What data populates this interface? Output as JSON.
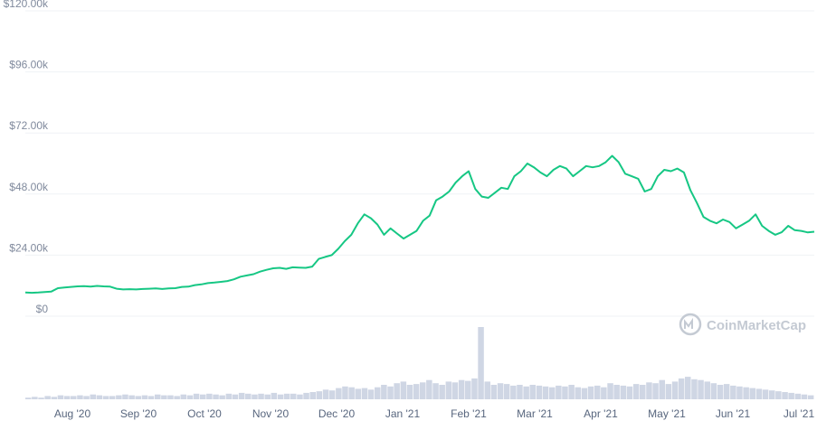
{
  "chart_data": {
    "type": "line",
    "title": "",
    "xlabel": "",
    "ylabel": "",
    "y_ticks": [
      "$120.00k",
      "$96.00k",
      "$72.00k",
      "$48.00k",
      "$24.00k",
      "$0"
    ],
    "ylim": [
      0,
      120000
    ],
    "x_ticks": [
      "Aug '20",
      "Sep '20",
      "Oct '20",
      "Nov '20",
      "Dec '20",
      "Jan '21",
      "Feb '21",
      "Mar '21",
      "Apr '21",
      "May '21",
      "Jun '21",
      "Jul '21"
    ],
    "grid": true,
    "line_color": "#16c784",
    "volume_color": "#cfd6e4",
    "watermark": "CoinMarketCap",
    "series": [
      {
        "values": [
          [
            0,
            9300
          ],
          [
            1,
            9200
          ],
          [
            2,
            9300
          ],
          [
            3,
            9500
          ],
          [
            4,
            9700
          ],
          [
            5,
            11000
          ],
          [
            6,
            11300
          ],
          [
            7,
            11500
          ],
          [
            8,
            11700
          ],
          [
            9,
            11800
          ],
          [
            10,
            11600
          ],
          [
            11,
            11900
          ],
          [
            12,
            11700
          ],
          [
            13,
            11600
          ],
          [
            14,
            10800
          ],
          [
            15,
            10500
          ],
          [
            16,
            10600
          ],
          [
            17,
            10500
          ],
          [
            18,
            10700
          ],
          [
            19,
            10800
          ],
          [
            20,
            10900
          ],
          [
            21,
            10700
          ],
          [
            22,
            10900
          ],
          [
            23,
            11000
          ],
          [
            24,
            11500
          ],
          [
            25,
            11600
          ],
          [
            26,
            12200
          ],
          [
            27,
            12500
          ],
          [
            28,
            13000
          ],
          [
            29,
            13200
          ],
          [
            30,
            13500
          ],
          [
            31,
            13800
          ],
          [
            32,
            14500
          ],
          [
            33,
            15500
          ],
          [
            34,
            16000
          ],
          [
            35,
            16500
          ],
          [
            36,
            17500
          ],
          [
            37,
            18200
          ],
          [
            38,
            18800
          ],
          [
            39,
            19000
          ],
          [
            40,
            18600
          ],
          [
            41,
            19200
          ],
          [
            42,
            19100
          ],
          [
            43,
            19000
          ],
          [
            44,
            19500
          ],
          [
            45,
            22500
          ],
          [
            46,
            23300
          ],
          [
            47,
            24000
          ],
          [
            48,
            26500
          ],
          [
            49,
            29500
          ],
          [
            50,
            32000
          ],
          [
            51,
            36500
          ],
          [
            52,
            40000
          ],
          [
            53,
            38500
          ],
          [
            54,
            36000
          ],
          [
            55,
            32000
          ],
          [
            56,
            34500
          ],
          [
            57,
            32500
          ],
          [
            58,
            30500
          ],
          [
            59,
            32000
          ],
          [
            60,
            33500
          ],
          [
            61,
            37500
          ],
          [
            62,
            39500
          ],
          [
            63,
            45500
          ],
          [
            64,
            47000
          ],
          [
            65,
            49000
          ],
          [
            66,
            52500
          ],
          [
            67,
            55000
          ],
          [
            68,
            57000
          ],
          [
            69,
            50000
          ],
          [
            70,
            47000
          ],
          [
            71,
            46500
          ],
          [
            72,
            48500
          ],
          [
            73,
            50500
          ],
          [
            74,
            50000
          ],
          [
            75,
            55000
          ],
          [
            76,
            57000
          ],
          [
            77,
            60000
          ],
          [
            78,
            58500
          ],
          [
            79,
            56500
          ],
          [
            80,
            55000
          ],
          [
            81,
            57500
          ],
          [
            82,
            59000
          ],
          [
            83,
            58000
          ],
          [
            84,
            55000
          ],
          [
            85,
            57000
          ],
          [
            86,
            59000
          ],
          [
            87,
            58500
          ],
          [
            88,
            59000
          ],
          [
            89,
            60500
          ],
          [
            90,
            63000
          ],
          [
            91,
            60500
          ],
          [
            92,
            56000
          ],
          [
            93,
            55000
          ],
          [
            94,
            54000
          ],
          [
            95,
            49000
          ],
          [
            96,
            50000
          ],
          [
            97,
            55000
          ],
          [
            98,
            57500
          ],
          [
            99,
            57000
          ],
          [
            100,
            58000
          ],
          [
            101,
            56500
          ],
          [
            102,
            49500
          ],
          [
            103,
            44500
          ],
          [
            104,
            39000
          ],
          [
            105,
            37500
          ],
          [
            106,
            36500
          ],
          [
            107,
            38000
          ],
          [
            108,
            37000
          ],
          [
            109,
            34500
          ],
          [
            110,
            36000
          ],
          [
            111,
            37500
          ],
          [
            112,
            40000
          ],
          [
            113,
            35500
          ],
          [
            114,
            33500
          ],
          [
            115,
            32000
          ],
          [
            116,
            33000
          ],
          [
            117,
            35500
          ],
          [
            118,
            33800
          ],
          [
            119,
            33500
          ],
          [
            120,
            32900
          ],
          [
            121,
            33200
          ]
        ]
      }
    ],
    "volume": [
      2,
      3,
      2,
      4,
      3,
      5,
      4,
      4,
      5,
      4,
      6,
      5,
      4,
      4,
      5,
      6,
      5,
      4,
      5,
      4,
      6,
      5,
      5,
      4,
      6,
      5,
      7,
      6,
      7,
      6,
      5,
      7,
      6,
      8,
      7,
      6,
      7,
      6,
      8,
      6,
      7,
      7,
      6,
      8,
      9,
      10,
      12,
      11,
      14,
      16,
      15,
      13,
      14,
      12,
      15,
      18,
      16,
      20,
      22,
      18,
      19,
      21,
      24,
      20,
      18,
      22,
      21,
      24,
      23,
      26,
      90,
      22,
      18,
      20,
      19,
      17,
      18,
      16,
      18,
      17,
      16,
      15,
      17,
      16,
      18,
      15,
      14,
      16,
      17,
      15,
      20,
      18,
      17,
      16,
      19,
      18,
      21,
      20,
      24,
      19,
      22,
      26,
      28,
      25,
      24,
      22,
      20,
      18,
      19,
      17,
      16,
      15,
      14,
      13,
      12,
      11,
      10,
      9,
      8,
      7,
      6,
      5
    ]
  }
}
